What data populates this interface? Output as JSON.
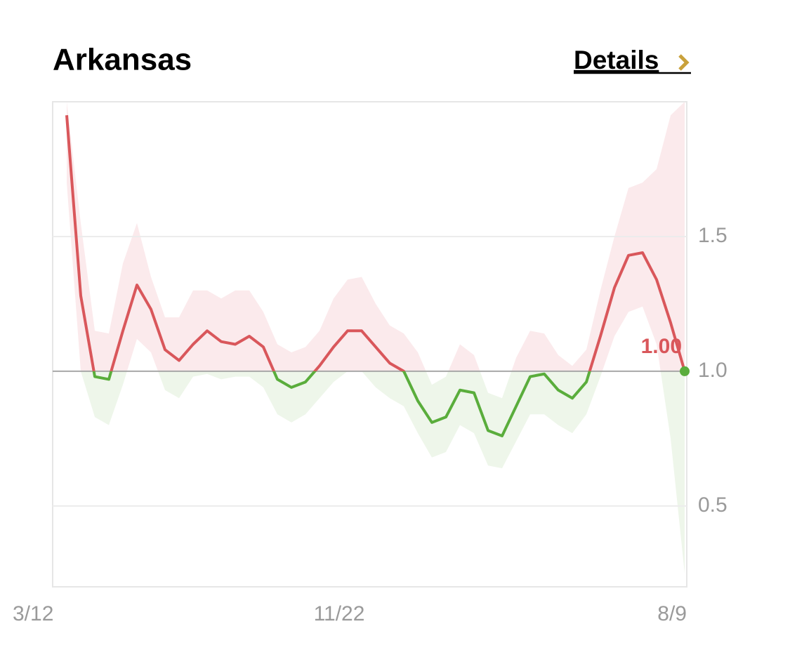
{
  "header": {
    "link": "Details"
  },
  "chart_data": {
    "type": "line",
    "title": "Arkansas",
    "categories": [
      "3/12",
      null,
      null,
      null,
      null,
      null,
      null,
      null,
      null,
      null,
      null,
      null,
      null,
      null,
      null,
      null,
      null,
      null,
      null,
      "11/22",
      null,
      null,
      null,
      null,
      null,
      null,
      null,
      null,
      null,
      null,
      null,
      null,
      null,
      null,
      null,
      null,
      null,
      null,
      null,
      null,
      null,
      null,
      null,
      null,
      "8/9"
    ],
    "values": [
      1.95,
      1.28,
      0.98,
      0.97,
      1.15,
      1.32,
      1.23,
      1.08,
      1.04,
      1.1,
      1.15,
      1.11,
      1.1,
      1.13,
      1.09,
      0.97,
      0.94,
      0.96,
      1.02,
      1.09,
      1.15,
      1.15,
      1.09,
      1.03,
      1.0,
      0.89,
      0.81,
      0.83,
      0.93,
      0.92,
      0.78,
      0.76,
      0.87,
      0.98,
      0.99,
      0.93,
      0.9,
      0.96,
      1.13,
      1.31,
      1.43,
      1.44,
      1.34,
      1.18,
      1.0
    ],
    "value_labels": [
      null,
      null,
      null,
      null,
      null,
      null,
      null,
      null,
      null,
      null,
      null,
      null,
      null,
      null,
      null,
      null,
      null,
      null,
      null,
      null,
      null,
      null,
      null,
      null,
      null,
      null,
      null,
      null,
      null,
      null,
      null,
      null,
      null,
      null,
      null,
      null,
      null,
      null,
      null,
      null,
      null,
      null,
      null,
      null,
      "1.00"
    ],
    "band": {
      "upper": [
        2.0,
        1.55,
        1.15,
        1.14,
        1.4,
        1.55,
        1.35,
        1.2,
        1.2,
        1.3,
        1.3,
        1.27,
        1.3,
        1.3,
        1.22,
        1.1,
        1.07,
        1.09,
        1.15,
        1.27,
        1.34,
        1.35,
        1.25,
        1.17,
        1.14,
        1.07,
        0.95,
        0.98,
        1.1,
        1.06,
        0.92,
        0.9,
        1.05,
        1.15,
        1.14,
        1.06,
        1.02,
        1.08,
        1.3,
        1.5,
        1.68,
        1.7,
        1.75,
        1.95,
        2.0
      ],
      "lower": [
        1.7,
        1.0,
        0.83,
        0.8,
        0.95,
        1.12,
        1.07,
        0.93,
        0.9,
        0.98,
        0.99,
        0.97,
        0.98,
        0.98,
        0.94,
        0.84,
        0.81,
        0.84,
        0.9,
        0.96,
        1.0,
        1.0,
        0.94,
        0.9,
        0.87,
        0.77,
        0.68,
        0.7,
        0.8,
        0.77,
        0.65,
        0.64,
        0.74,
        0.84,
        0.84,
        0.8,
        0.77,
        0.84,
        0.98,
        1.13,
        1.22,
        1.24,
        1.1,
        0.75,
        0.25
      ]
    },
    "reference_line": 1,
    "color_above": "#d9575b",
    "color_below": "#5aad3c",
    "band_color_above": "#fbeaec",
    "band_color_below": "#eef6ea",
    "ylim": [
      0.2,
      2.0
    ],
    "yticks": [
      0.5,
      {
        "value": 1,
        "label": "1.0"
      },
      1.5
    ],
    "grid": true
  }
}
